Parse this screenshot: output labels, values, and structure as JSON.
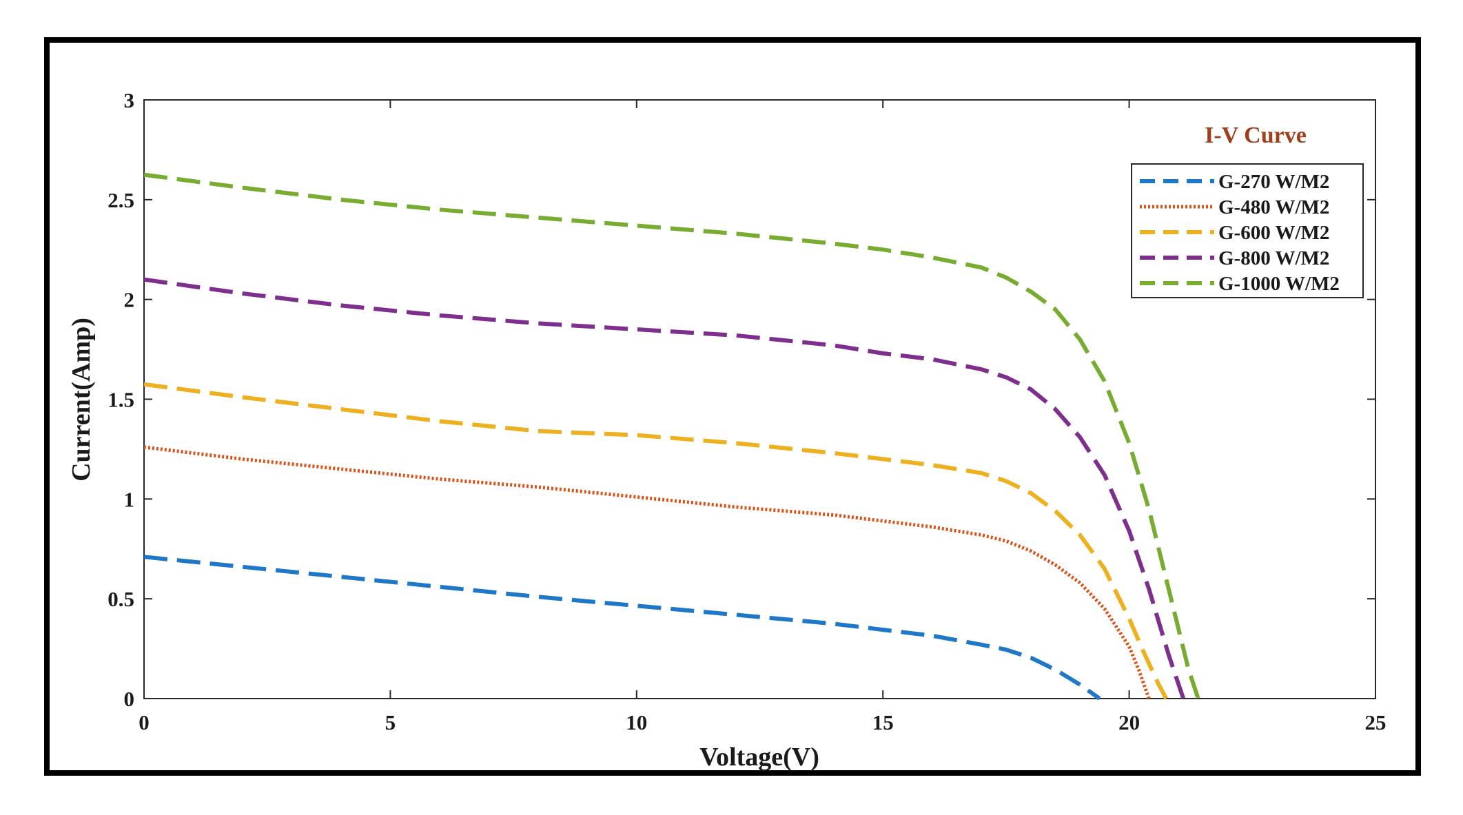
{
  "chart_data": {
    "type": "line",
    "title": "I-V Curve",
    "xlabel": "Voltage(V)",
    "ylabel": "Current(Amp)",
    "xlim": [
      0,
      25
    ],
    "ylim": [
      0,
      3
    ],
    "xticks": [
      "0",
      "5",
      "10",
      "15",
      "20",
      "25"
    ],
    "yticks": [
      "0",
      "0.5",
      "1",
      "1.5",
      "2",
      "2.5",
      "3"
    ],
    "grid": false,
    "legend_position": "top-right",
    "title_color": "#A0401A",
    "series": [
      {
        "name": "G-270 W/M2",
        "color": "#1F77C8",
        "style": "dashed",
        "x": [
          0,
          2,
          4,
          6,
          8,
          10,
          12,
          14,
          15,
          16,
          17,
          17.5,
          18,
          18.5,
          19,
          19.2,
          19.4
        ],
        "y": [
          0.71,
          0.66,
          0.61,
          0.56,
          0.51,
          0.465,
          0.42,
          0.375,
          0.345,
          0.315,
          0.27,
          0.245,
          0.205,
          0.145,
          0.07,
          0.035,
          0
        ]
      },
      {
        "name": "G-480 W/M2",
        "color": "#D95319",
        "style": "dotted",
        "x": [
          0,
          2,
          4,
          6,
          8,
          10,
          12,
          14,
          15,
          16,
          17,
          17.5,
          18,
          18.5,
          19,
          19.5,
          20,
          20.2,
          20.4
        ],
        "y": [
          1.26,
          1.2,
          1.15,
          1.1,
          1.06,
          1.01,
          0.96,
          0.92,
          0.89,
          0.86,
          0.82,
          0.79,
          0.74,
          0.67,
          0.58,
          0.45,
          0.26,
          0.14,
          0
        ]
      },
      {
        "name": "G-600 W/M2",
        "color": "#EDB120",
        "style": "dashed",
        "x": [
          0,
          2,
          4,
          6,
          8,
          10,
          12,
          14,
          15,
          16,
          17,
          17.5,
          18,
          18.5,
          19,
          19.5,
          20,
          20.3,
          20.6,
          20.75
        ],
        "y": [
          1.575,
          1.51,
          1.45,
          1.39,
          1.34,
          1.32,
          1.28,
          1.23,
          1.2,
          1.17,
          1.13,
          1.09,
          1.03,
          0.94,
          0.82,
          0.65,
          0.4,
          0.23,
          0.07,
          0
        ]
      },
      {
        "name": "G-800 W/M2",
        "color": "#7E2F8E",
        "style": "dashed",
        "x": [
          0,
          2,
          4,
          6,
          8,
          10,
          12,
          14,
          15,
          16,
          17,
          17.5,
          18,
          18.5,
          19,
          19.5,
          20,
          20.4,
          20.8,
          21.1
        ],
        "y": [
          2.1,
          2.03,
          1.97,
          1.92,
          1.88,
          1.85,
          1.82,
          1.77,
          1.73,
          1.7,
          1.65,
          1.61,
          1.55,
          1.45,
          1.31,
          1.12,
          0.84,
          0.55,
          0.22,
          0
        ]
      },
      {
        "name": "G-1000 W/M2",
        "color": "#77AC30",
        "style": "dashed",
        "x": [
          0,
          2,
          4,
          6,
          8,
          10,
          12,
          14,
          15,
          16,
          17,
          17.5,
          18,
          18.5,
          19,
          19.5,
          20,
          20.4,
          20.8,
          21.2,
          21.4
        ],
        "y": [
          2.625,
          2.56,
          2.5,
          2.45,
          2.41,
          2.37,
          2.33,
          2.28,
          2.25,
          2.21,
          2.16,
          2.11,
          2.04,
          1.95,
          1.8,
          1.59,
          1.28,
          0.95,
          0.55,
          0.15,
          0
        ]
      }
    ]
  }
}
